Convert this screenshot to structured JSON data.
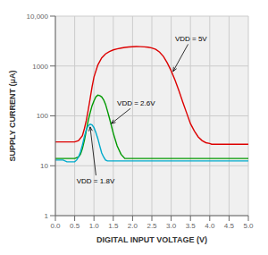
{
  "chart_data": {
    "type": "line",
    "xlabel": "DIGITAL INPUT VOLTAGE (V)",
    "ylabel": "SUPPLY CURRENT (μA)",
    "log": "y",
    "grid": true,
    "xlim": [
      0,
      5.0
    ],
    "ylim": [
      1,
      10000
    ],
    "xticks": [
      {
        "value": 0,
        "label": "0.0"
      },
      {
        "value": 0.5,
        "label": "0.5"
      },
      {
        "value": 1.0,
        "label": "1.0"
      },
      {
        "value": 1.5,
        "label": "1.5"
      },
      {
        "value": 2.0,
        "label": "2.0"
      },
      {
        "value": 2.5,
        "label": "2.5"
      },
      {
        "value": 3.0,
        "label": "3.0"
      },
      {
        "value": 3.5,
        "label": "3.5"
      },
      {
        "value": 4.0,
        "label": "4.0"
      },
      {
        "value": 4.5,
        "label": "4.5"
      },
      {
        "value": 5.0,
        "label": "5.0"
      }
    ],
    "yticks": [
      1,
      10,
      100,
      1000,
      {
        "value": 10000,
        "label": "10,000"
      }
    ],
    "series": [
      {
        "color": "#dd0000",
        "x": [
          0.0,
          0.1,
          0.2,
          0.3,
          0.4,
          0.5,
          0.6,
          0.7,
          0.75,
          0.8,
          0.85,
          0.9,
          0.95,
          1.0,
          1.1,
          1.2,
          1.3,
          1.4,
          1.5,
          1.6,
          1.7,
          1.8,
          1.9,
          2.0,
          2.1,
          2.2,
          2.3,
          2.4,
          2.5,
          2.6,
          2.7,
          2.8,
          2.9,
          3.0,
          3.1,
          3.2,
          3.3,
          3.4,
          3.5,
          3.6,
          3.7,
          3.8,
          3.9,
          4.0,
          4.05,
          4.1,
          4.2,
          4.3,
          4.4,
          4.5,
          4.6,
          4.7,
          4.8,
          4.9,
          5.0
        ],
        "values": [
          30,
          30,
          30,
          30,
          30,
          30,
          32,
          40,
          55,
          80,
          130,
          220,
          380,
          600,
          1050,
          1450,
          1750,
          1950,
          2100,
          2200,
          2280,
          2350,
          2400,
          2430,
          2450,
          2440,
          2420,
          2380,
          2300,
          2150,
          1900,
          1550,
          1150,
          800,
          520,
          320,
          190,
          115,
          70,
          50,
          38,
          32,
          29,
          28,
          27,
          27,
          27,
          27,
          27,
          27,
          27,
          27,
          27,
          27,
          27
        ]
      },
      {
        "color": "#009900",
        "x": [
          0.0,
          0.1,
          0.2,
          0.3,
          0.4,
          0.5,
          0.6,
          0.65,
          0.7,
          0.75,
          0.8,
          0.85,
          0.9,
          0.95,
          1.0,
          1.05,
          1.1,
          1.15,
          1.2,
          1.25,
          1.3,
          1.35,
          1.4,
          1.5,
          1.6,
          1.7,
          1.8,
          1.9,
          2.0,
          2.1,
          2.2,
          2.3,
          2.4,
          2.5,
          2.6,
          2.7,
          2.8,
          2.9,
          3.0,
          3.5,
          4.0,
          4.5,
          5.0
        ],
        "values": [
          14,
          14,
          14,
          14,
          14,
          14,
          15,
          17,
          22,
          32,
          50,
          80,
          115,
          160,
          200,
          240,
          260,
          255,
          240,
          210,
          170,
          125,
          90,
          45,
          25,
          17,
          14,
          14,
          14,
          14,
          14,
          14,
          14,
          14,
          14,
          14,
          14,
          14,
          14,
          14,
          14,
          14,
          14
        ]
      },
      {
        "color": "#00aacc",
        "x": [
          0.0,
          0.1,
          0.2,
          0.3,
          0.4,
          0.5,
          0.55,
          0.6,
          0.65,
          0.7,
          0.75,
          0.8,
          0.85,
          0.9,
          0.95,
          1.0,
          1.05,
          1.1,
          1.15,
          1.2,
          1.25,
          1.3,
          1.35,
          1.4,
          1.5,
          1.6,
          1.7,
          1.8,
          2.0,
          2.5,
          3.0,
          3.5,
          4.0,
          4.5,
          5.0
        ],
        "values": [
          13,
          13,
          13,
          12,
          12,
          12,
          13,
          15,
          19,
          26,
          38,
          52,
          63,
          68,
          66,
          58,
          46,
          35,
          25,
          18,
          15,
          13,
          12.5,
          12.5,
          12.5,
          12.5,
          12.5,
          12.5,
          12.5,
          12.5,
          12.5,
          12.5,
          12.5,
          12.5,
          12.5
        ]
      }
    ],
    "annotations": [
      {
        "text": "VDD = 5V",
        "x": 3.05,
        "y": 780,
        "text_x": 3.1,
        "text_y": 3500
      },
      {
        "text": "VDD = 2.6V",
        "x": 1.45,
        "y": 70,
        "text_x": 1.6,
        "text_y": 180
      },
      {
        "text": "VDD = 1.8V",
        "x": 0.9,
        "y": 60,
        "text_x": 0.55,
        "text_y": 5
      }
    ]
  }
}
